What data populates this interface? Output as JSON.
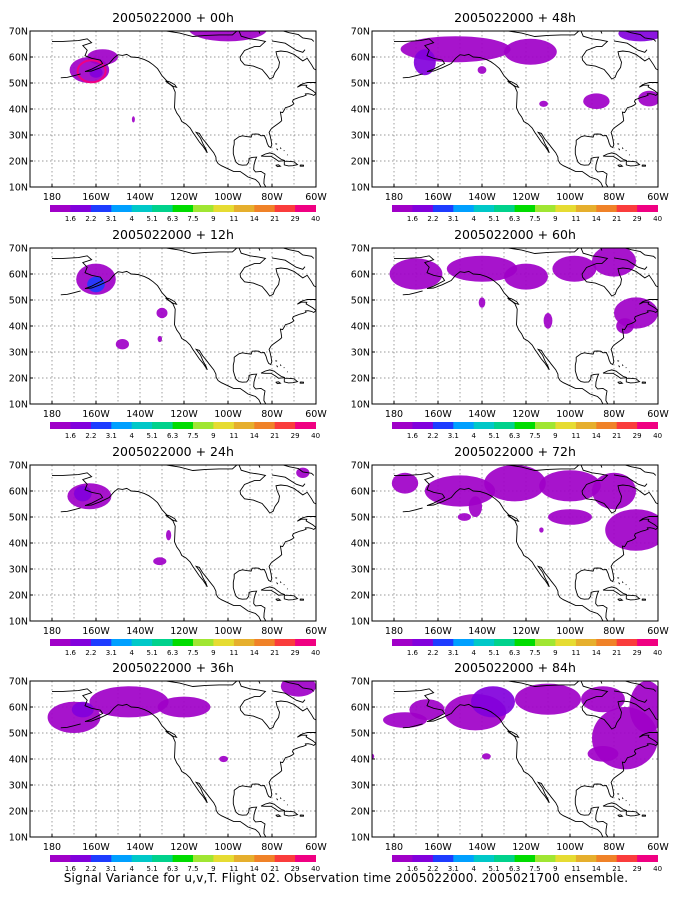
{
  "figure": {
    "caption": "Signal Variance for u,v,T. Flight 02. Observation time 2005022000. 2005021700 ensemble."
  },
  "map": {
    "lat_range": [
      10,
      70
    ],
    "lon_range": [
      -190,
      -60
    ],
    "lat_ticks": [
      "10N",
      "20N",
      "30N",
      "40N",
      "50N",
      "60N",
      "70N"
    ],
    "lon_ticks": [
      "180",
      "160W",
      "140W",
      "120W",
      "100W",
      "80W",
      "60W"
    ],
    "grid": "dotted"
  },
  "colorbar": {
    "labels": [
      "1.6",
      "2.2",
      "3.1",
      "4",
      "5.1",
      "6.3",
      "7.5",
      "9",
      "11",
      "14",
      "21",
      "29",
      "40"
    ],
    "colors": [
      "#a000c8",
      "#8200dc",
      "#1e3cff",
      "#00a0ff",
      "#00c8c8",
      "#00d28c",
      "#00dc00",
      "#a0e632",
      "#e6dc32",
      "#e6af2d",
      "#f08228",
      "#fa3c3c",
      "#f00082"
    ]
  },
  "panels": [
    {
      "title": "2005022000 + 00h"
    },
    {
      "title": "2005022000 + 48h"
    },
    {
      "title": "2005022000 + 12h"
    },
    {
      "title": "2005022000 + 60h"
    },
    {
      "title": "2005022000 + 24h"
    },
    {
      "title": "2005022000 + 72h"
    },
    {
      "title": "2005022000 + 36h"
    },
    {
      "title": "2005022000 + 84h"
    }
  ]
}
